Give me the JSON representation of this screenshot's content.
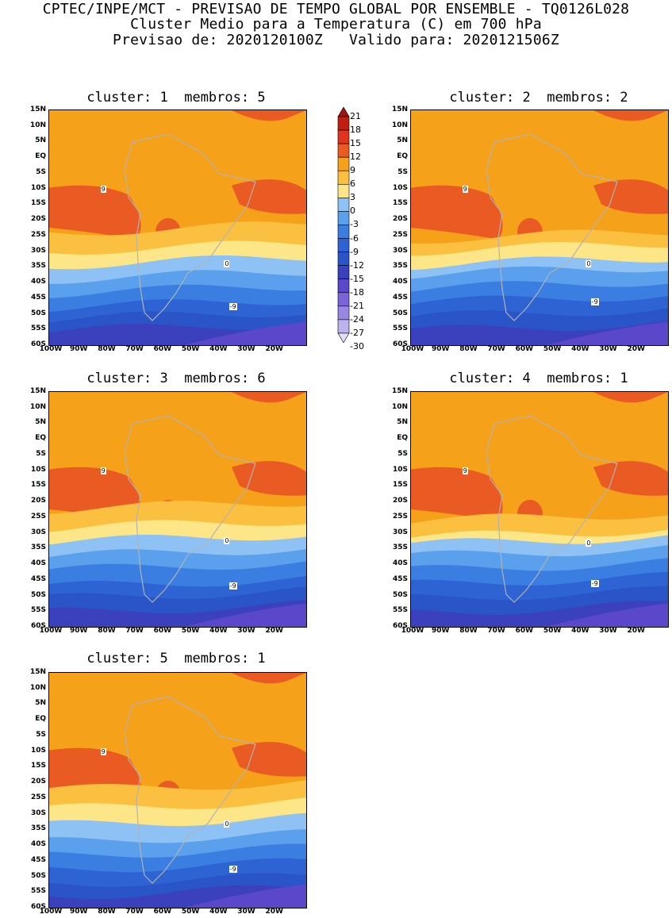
{
  "header": {
    "line1": "CPTEC/INPE/MCT - PREVISAO DE TEMPO GLOBAL POR ENSEMBLE - TQ0126L028",
    "line2": "Cluster Medio para a Temperatura (C) em 700 hPa",
    "line3": "Previsao de: 2020120100Z   Valido para: 2020121506Z"
  },
  "panels": [
    {
      "title": "cluster: 1  membros: 5"
    },
    {
      "title": "cluster: 2  membros: 2"
    },
    {
      "title": "cluster: 3  membros: 6"
    },
    {
      "title": "cluster: 4  membros: 1"
    },
    {
      "title": "cluster: 5  membros: 1"
    }
  ],
  "lat_labels": [
    "15N",
    "10N",
    "5N",
    "EQ",
    "5S",
    "10S",
    "15S",
    "20S",
    "25S",
    "30S",
    "35S",
    "40S",
    "45S",
    "50S",
    "55S",
    "60S"
  ],
  "lon_labels": [
    "100W",
    "90W",
    "80W",
    "70W",
    "60W",
    "50W",
    "40W",
    "30W",
    "20W"
  ],
  "colorbar": {
    "labels": [
      "21",
      "18",
      "15",
      "12",
      "9",
      "6",
      "3",
      "0",
      "-3",
      "-6",
      "-9",
      "-12",
      "-15",
      "-18",
      "-21",
      "-24",
      "-27",
      "-30"
    ]
  },
  "contour_labels": {
    "zero": "0",
    "nine": "9",
    "neg_nine": "-9"
  },
  "colors": {
    "c24": "#a3140f",
    "c18": "#c01e10",
    "c15": "#e0341c",
    "c12": "#ea5a23",
    "c9": "#f5a119",
    "c6": "#fbc040",
    "c3": "#fde688",
    "cm0": "#8ec2f5",
    "cm3": "#5aa0ec",
    "cm6": "#3a7ee2",
    "cm9": "#2e63d3",
    "cm12": "#2a55c8",
    "cm15": "#3b40bd",
    "cm18": "#5a47c9",
    "cm21": "#7b63d9",
    "cm24": "#9a86e3",
    "cm27": "#bcb2ee",
    "cm30": "#e3dff8"
  }
}
